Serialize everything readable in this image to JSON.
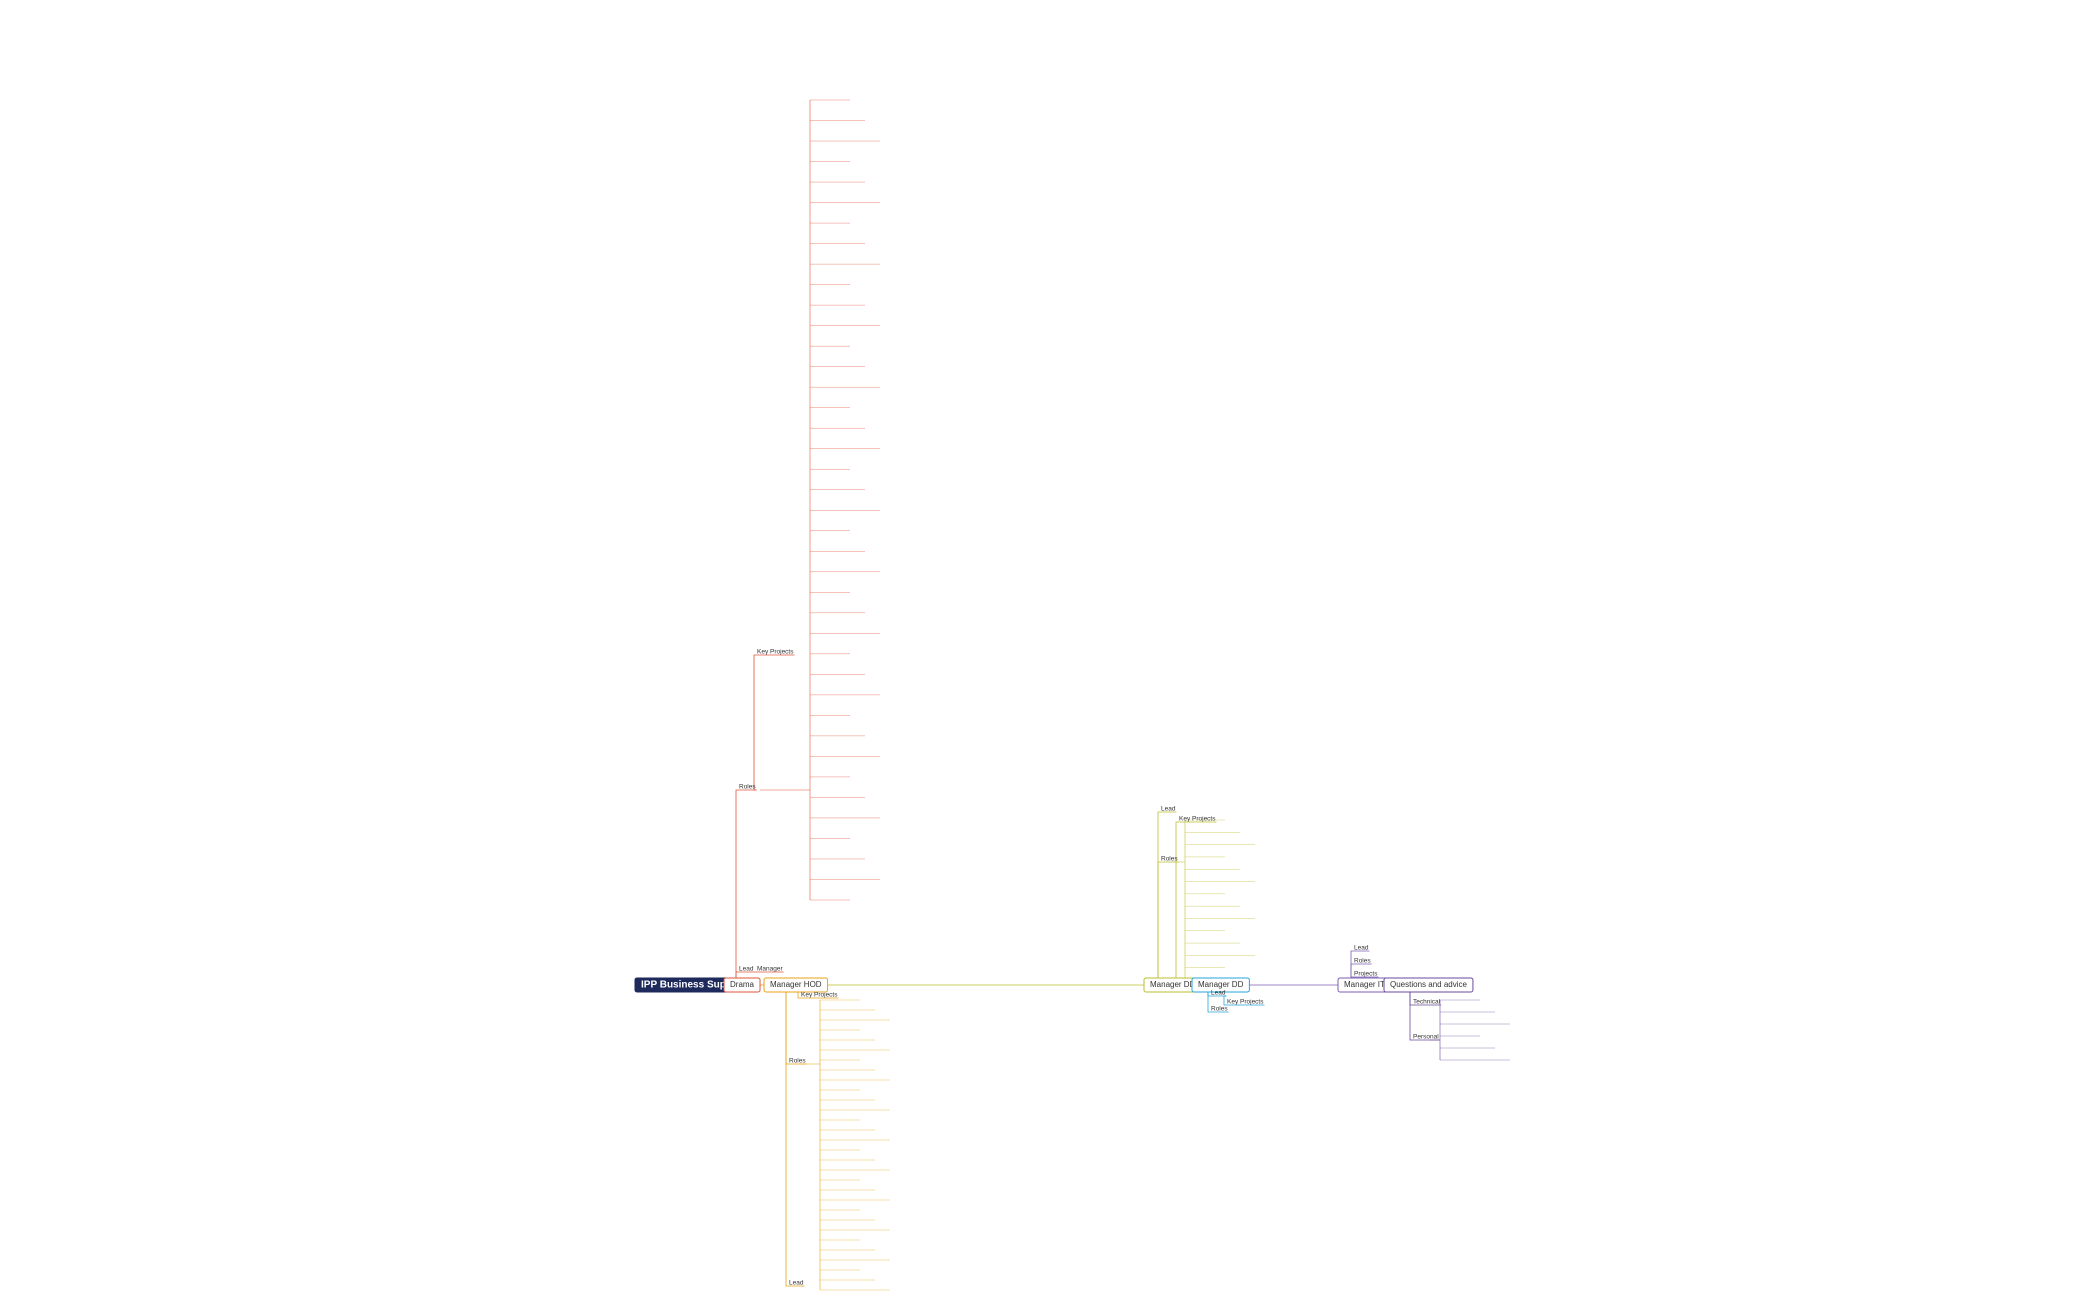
{
  "nodes": [
    {
      "label": "IPP Business Support",
      "parent": null,
      "color": "#1f2a5c"
    },
    {
      "label": "Drama",
      "parent": 0,
      "color": "#e2553b"
    },
    {
      "label": "Manager HOD",
      "parent": 1,
      "color": "#e8a317"
    },
    {
      "label": "Manager DD",
      "parent": 2,
      "color": "#bdbf2e"
    },
    {
      "label": "Manager DD",
      "parent": 3,
      "color": "#27a4d9"
    },
    {
      "label": "Manager IT",
      "parent": 4,
      "color": "#7b5fb0"
    },
    {
      "label": "Questions and advice",
      "parent": 5,
      "color": "#6a4a9c"
    },
    {
      "label": "Roles",
      "parent": 1
    },
    {
      "label": "Key Projects",
      "parent": 7
    },
    {
      "label": "Lead",
      "parent": 1
    },
    {
      "label": "Manager",
      "parent": 9
    },
    {
      "label": "Roles",
      "parent": 2
    },
    {
      "label": "Key Projects",
      "parent": 2
    },
    {
      "label": "Lead",
      "parent": 2
    },
    {
      "label": "Lead",
      "parent": 3
    },
    {
      "label": "Key Projects",
      "parent": 3
    },
    {
      "label": "Roles",
      "parent": 3
    },
    {
      "label": "Lead",
      "parent": 4
    },
    {
      "label": "Key Projects",
      "parent": 17
    },
    {
      "label": "Roles",
      "parent": 4
    },
    {
      "label": "Lead",
      "parent": 5
    },
    {
      "label": "Roles",
      "parent": 5
    },
    {
      "label": "Projects",
      "parent": 5
    },
    {
      "label": "Technical",
      "parent": 6
    },
    {
      "label": "Personal",
      "parent": 6
    }
  ]
}
